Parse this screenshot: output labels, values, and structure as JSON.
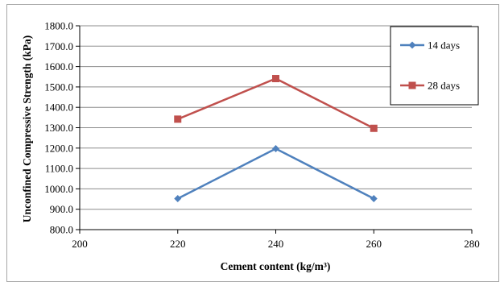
{
  "chart_data": {
    "type": "line",
    "title": "",
    "xlabel": "Cement content (kg/m³)",
    "ylabel": "Unconfined Compressive Strength (kPa)",
    "xlim": [
      200,
      280
    ],
    "ylim": [
      800,
      1800
    ],
    "x_ticks": [
      "200",
      "220",
      "240",
      "260",
      "280"
    ],
    "y_ticks": [
      "800.0",
      "900.0",
      "1000.0",
      "1100.0",
      "1200.0",
      "1300.0",
      "1400.0",
      "1500.0",
      "1600.0",
      "1700.0",
      "1800.0"
    ],
    "grid": "horizontal",
    "legend_position": "top-right",
    "series": [
      {
        "name": "14 days",
        "color": "#4f81bd",
        "marker": "diamond",
        "x": [
          220,
          240,
          260
        ],
        "y": [
          952,
          1197,
          952
        ]
      },
      {
        "name": "28 days",
        "color": "#c0504d",
        "marker": "square",
        "x": [
          220,
          240,
          260
        ],
        "y": [
          1342,
          1541,
          1297
        ]
      }
    ]
  }
}
